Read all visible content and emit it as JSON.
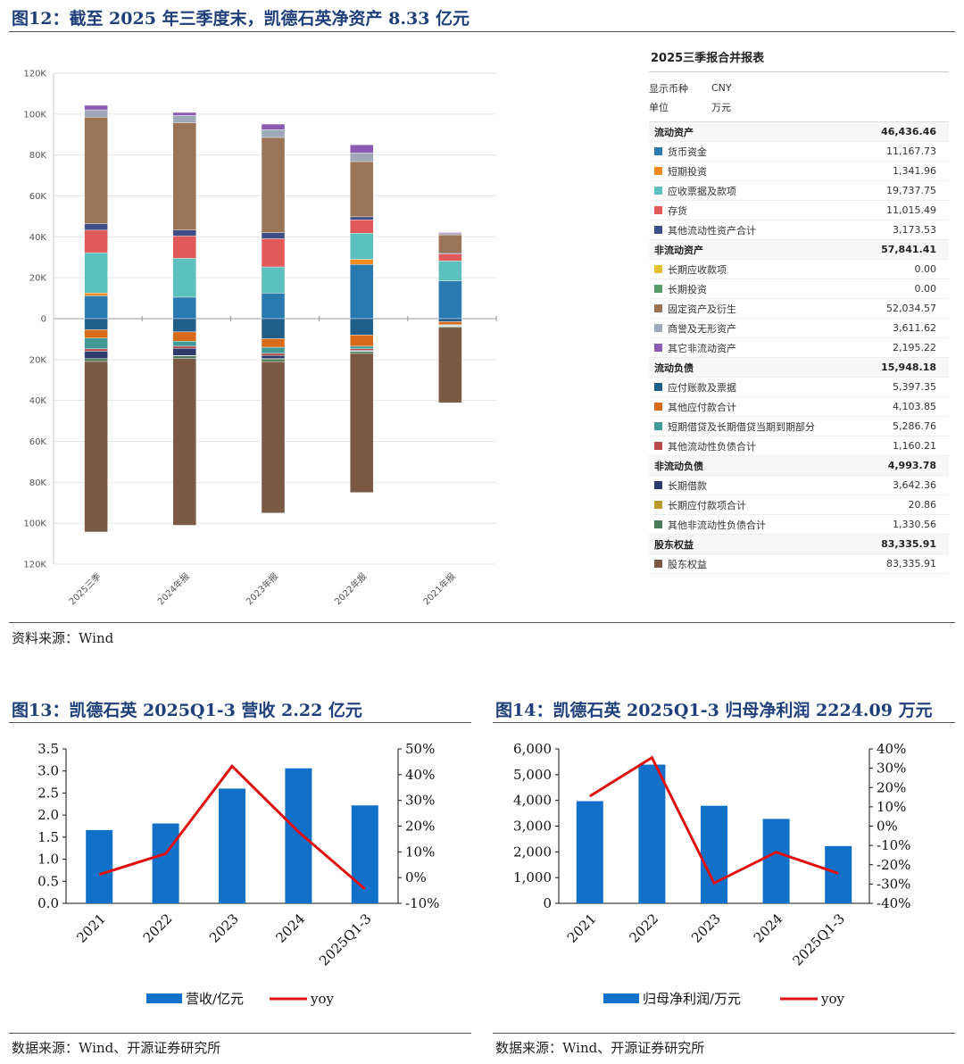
{
  "fig12": {
    "title": "图12：截至 2025 年三季度末，凯德石英净资产 8.33 亿元",
    "source": "资料来源：Wind",
    "table": {
      "title": "2025三季报合并报表",
      "currency_label": "显示币种",
      "currency_value": "CNY",
      "unit_label": "单位",
      "unit_value": "万元",
      "rows": [
        {
          "label": "流动资产",
          "value": "46,436.46",
          "section": true
        },
        {
          "label": "货币资金",
          "value": "11,167.73",
          "color": "#2a7ab0"
        },
        {
          "label": "短期投资",
          "value": "1,341.96",
          "color": "#f28a1e"
        },
        {
          "label": "应收票据及款项",
          "value": "19,737.75",
          "color": "#5bc0be"
        },
        {
          "label": "存货",
          "value": "11,015.49",
          "color": "#e05a5a"
        },
        {
          "label": "其他流动性资产合计",
          "value": "3,173.53",
          "color": "#3f4e86"
        },
        {
          "label": "非流动资产",
          "value": "57,841.41",
          "section": true
        },
        {
          "label": "长期应收款项",
          "value": "0.00",
          "color": "#e4c234"
        },
        {
          "label": "长期投资",
          "value": "0.00",
          "color": "#5a9a6a"
        },
        {
          "label": "固定资产及衍生",
          "value": "52,034.57",
          "color": "#9a7456"
        },
        {
          "label": "商誉及无形资产",
          "value": "3,611.62",
          "color": "#9fa8b8"
        },
        {
          "label": "其它非流动资产",
          "value": "2,195.22",
          "color": "#8a5bb0"
        },
        {
          "label": "流动负债",
          "value": "15,948.18",
          "section": true
        },
        {
          "label": "应付账款及票据",
          "value": "5,397.35",
          "color": "#1f5f8a"
        },
        {
          "label": "其他应付款合计",
          "value": "4,103.85",
          "color": "#d86a1a"
        },
        {
          "label": "短期借贷及长期借贷当期到期部分",
          "value": "5,286.76",
          "color": "#3f9a98"
        },
        {
          "label": "其他流动性负债合计",
          "value": "1,160.21",
          "color": "#b84a4a"
        },
        {
          "label": "非流动负债",
          "value": "4,993.78",
          "section": true
        },
        {
          "label": "长期借款",
          "value": "3,642.36",
          "color": "#2e3a6a"
        },
        {
          "label": "长期应付款项合计",
          "value": "20.86",
          "color": "#b89a2a"
        },
        {
          "label": "其他非流动性负债合计",
          "value": "1,330.56",
          "color": "#4a7a5a"
        },
        {
          "label": "股东权益",
          "value": "83,335.91",
          "section": true
        },
        {
          "label": "股东权益",
          "value": "83,335.91",
          "color": "#7a5a44"
        }
      ]
    }
  },
  "fig13": {
    "title": "图13：凯德石英 2025Q1-3 营收 2.22 亿元",
    "source": "数据来源：Wind、开源证券研究所"
  },
  "fig14": {
    "title": "图14：凯德石英 2025Q1-3 归母净利润 2224.09 万元",
    "source": "数据来源：Wind、开源证券研究所"
  },
  "chart_data": [
    {
      "type": "bar",
      "stacked": true,
      "categories": [
        "2025三季",
        "2024年报",
        "2023年报",
        "2022年报",
        "2021年报"
      ],
      "ylim": [
        -120000,
        120000
      ],
      "ytick_labels": [
        "120K",
        "100K",
        "80K",
        "60K",
        "40K",
        "20K",
        "0",
        "20K",
        "40K",
        "60K",
        "80K",
        "100K",
        "120K"
      ],
      "grid": true,
      "series": [
        {
          "name": "货币资金",
          "color": "#2a7ab0",
          "values": [
            11168,
            10500,
            12500,
            26500,
            18500
          ]
        },
        {
          "name": "短期投资",
          "color": "#f28a1e",
          "values": [
            1342,
            0,
            0,
            2500,
            0
          ]
        },
        {
          "name": "应收票据及款项",
          "color": "#5bc0be",
          "values": [
            19738,
            19000,
            12800,
            12800,
            9700
          ]
        },
        {
          "name": "存货",
          "color": "#e05a5a",
          "values": [
            11015,
            11000,
            13800,
            6500,
            3500
          ]
        },
        {
          "name": "其他流动性资产合计",
          "color": "#3f4e86",
          "values": [
            3174,
            2800,
            3000,
            1500,
            500
          ]
        },
        {
          "name": "固定资产及衍生",
          "color": "#9a7456",
          "values": [
            52035,
            52500,
            46500,
            27000,
            8800
          ]
        },
        {
          "name": "商誉及无形资产",
          "color": "#9fa8b8",
          "values": [
            3612,
            3500,
            3800,
            4200,
            600
          ]
        },
        {
          "name": "其它非流动资产",
          "color": "#8a5bb0",
          "values": [
            2195,
            1500,
            2700,
            4000,
            500
          ]
        },
        {
          "name": "应付账款及票据",
          "color": "#1f5f8a",
          "values": [
            -5397,
            -6500,
            -9800,
            -8000,
            -1500
          ]
        },
        {
          "name": "其他应付款合计",
          "color": "#d86a1a",
          "values": [
            -4104,
            -4500,
            -4200,
            -5500,
            -1500
          ]
        },
        {
          "name": "短期借贷及长期借贷当期到期部分",
          "color": "#3f9a98",
          "values": [
            -5287,
            -2500,
            -3000,
            -1200,
            -300
          ]
        },
        {
          "name": "其他流动性负债合计",
          "color": "#b84a4a",
          "values": [
            -1160,
            -1000,
            -1000,
            -800,
            -200
          ]
        },
        {
          "name": "长期借款",
          "color": "#2e3a6a",
          "values": [
            -3642,
            -3500,
            -1500,
            -300,
            -200
          ]
        },
        {
          "name": "长期应付款项合计",
          "color": "#b89a2a",
          "values": [
            -21,
            -200,
            -200,
            -200,
            -100
          ]
        },
        {
          "name": "其他非流动性负债合计",
          "color": "#4a7a5a",
          "values": [
            -1331,
            -1300,
            -1300,
            -1000,
            -500
          ]
        },
        {
          "name": "股东权益",
          "color": "#7a5a44",
          "values": [
            -83336,
            -81500,
            -74000,
            -68000,
            -36800
          ]
        }
      ]
    },
    {
      "type": "bar+line",
      "categories": [
        "2021",
        "2022",
        "2023",
        "2024",
        "2025Q1-3"
      ],
      "series": [
        {
          "name": "营收/亿元",
          "type": "bar",
          "color": "#1170c8",
          "values": [
            1.66,
            1.81,
            2.6,
            3.06,
            2.22
          ]
        },
        {
          "name": "yoy",
          "type": "line",
          "color": "#e01010",
          "values": [
            0.012,
            0.093,
            0.433,
            0.178,
            -0.044
          ]
        }
      ],
      "ylim_left": [
        0,
        3.5
      ],
      "ylim_right": [
        -0.1,
        0.5
      ],
      "yticks_left": [
        "0.0",
        "0.5",
        "1.0",
        "1.5",
        "2.0",
        "2.5",
        "3.0",
        "3.5"
      ],
      "yticks_right": [
        "-10%",
        "0%",
        "10%",
        "20%",
        "30%",
        "40%",
        "50%"
      ]
    },
    {
      "type": "bar+line",
      "categories": [
        "2021",
        "2022",
        "2023",
        "2024",
        "2025Q1-3"
      ],
      "series": [
        {
          "name": "归母净利润/万元",
          "type": "bar",
          "color": "#1170c8",
          "values": [
            3970,
            5390,
            3790,
            3280,
            2224
          ]
        },
        {
          "name": "yoy",
          "type": "line",
          "color": "#e01010",
          "values": [
            0.155,
            0.355,
            -0.295,
            -0.135,
            -0.245
          ]
        }
      ],
      "ylim_left": [
        0,
        6000
      ],
      "ylim_right": [
        -0.4,
        0.4
      ],
      "yticks_left": [
        "0",
        "1,000",
        "2,000",
        "3,000",
        "4,000",
        "5,000",
        "6,000"
      ],
      "yticks_right": [
        "-40%",
        "-30%",
        "-20%",
        "-10%",
        "0%",
        "10%",
        "20%",
        "30%",
        "40%"
      ]
    }
  ]
}
